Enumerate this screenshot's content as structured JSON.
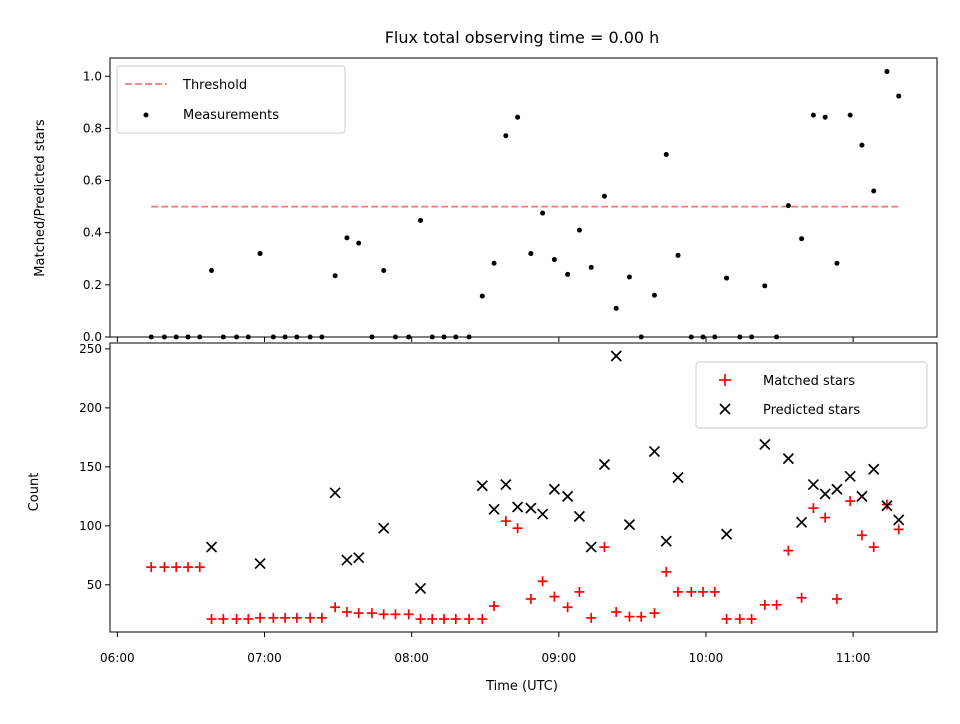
{
  "chart_data": [
    {
      "type": "scatter",
      "title": "Flux total observing time = 0.00 h",
      "ylabel": "Matched/Predicted stars",
      "xlabel": "",
      "xlim": [
        5.95,
        11.57
      ],
      "ylim": [
        0,
        1.07
      ],
      "yticks": [
        "0.0",
        "0.2",
        "0.4",
        "0.6",
        "0.8",
        "1.0"
      ],
      "grid": false,
      "legend_position": "top-left",
      "threshold": {
        "name": "Threshold",
        "value": 0.5,
        "x_range": [
          6.23,
          11.32
        ],
        "color": "#f07878",
        "style": "dashed"
      },
      "series": [
        {
          "name": "Measurements",
          "color": "#000000",
          "points": [
            [
              6.23,
              0
            ],
            [
              6.32,
              0
            ],
            [
              6.4,
              0
            ],
            [
              6.48,
              0
            ],
            [
              6.56,
              0
            ],
            [
              6.64,
              0.255
            ],
            [
              6.72,
              0
            ],
            [
              6.81,
              0
            ],
            [
              6.89,
              0
            ],
            [
              6.97,
              0.32
            ],
            [
              7.06,
              0
            ],
            [
              7.14,
              0
            ],
            [
              7.22,
              0
            ],
            [
              7.31,
              0
            ],
            [
              7.39,
              0
            ],
            [
              7.48,
              0.235
            ],
            [
              7.56,
              0.38
            ],
            [
              7.64,
              0.36
            ],
            [
              7.73,
              0
            ],
            [
              7.81,
              0.255
            ],
            [
              7.89,
              0
            ],
            [
              7.98,
              0
            ],
            [
              8.06,
              0.447
            ],
            [
              8.14,
              0
            ],
            [
              8.22,
              0
            ],
            [
              8.3,
              0
            ],
            [
              8.39,
              0
            ],
            [
              8.48,
              0.157
            ],
            [
              8.56,
              0.283
            ],
            [
              8.64,
              0.772
            ],
            [
              8.72,
              0.843
            ],
            [
              8.81,
              0.32
            ],
            [
              8.89,
              0.475
            ],
            [
              8.97,
              0.297
            ],
            [
              9.06,
              0.24
            ],
            [
              9.14,
              0.41
            ],
            [
              9.22,
              0.267
            ],
            [
              9.31,
              0.54
            ],
            [
              9.39,
              0.11
            ],
            [
              9.48,
              0.23
            ],
            [
              9.56,
              0
            ],
            [
              9.65,
              0.16
            ],
            [
              9.73,
              0.7
            ],
            [
              9.81,
              0.313
            ],
            [
              9.9,
              0
            ],
            [
              9.98,
              0
            ],
            [
              10.06,
              0
            ],
            [
              10.14,
              0.226
            ],
            [
              10.23,
              0
            ],
            [
              10.31,
              0
            ],
            [
              10.4,
              0.196
            ],
            [
              10.48,
              0
            ],
            [
              10.56,
              0.504
            ],
            [
              10.65,
              0.377
            ],
            [
              10.73,
              0.851
            ],
            [
              10.81,
              0.843
            ],
            [
              10.89,
              0.283
            ],
            [
              10.98,
              0.851
            ],
            [
              11.06,
              0.736
            ],
            [
              11.14,
              0.56
            ],
            [
              11.23,
              1.018
            ],
            [
              11.31,
              0.924
            ]
          ]
        }
      ]
    },
    {
      "type": "scatter",
      "title": "",
      "xlabel": "Time (UTC)",
      "ylabel": "Count",
      "xlim": [
        5.95,
        11.57
      ],
      "ylim": [
        10,
        255
      ],
      "xticks": [
        "06:00",
        "07:00",
        "08:00",
        "09:00",
        "10:00",
        "11:00"
      ],
      "yticks": [
        "50",
        "100",
        "150",
        "200",
        "250"
      ],
      "grid": false,
      "legend_position": "top-right",
      "series": [
        {
          "name": "Matched stars",
          "marker": "plus",
          "color": "#ff0000",
          "points": [
            [
              6.23,
              65
            ],
            [
              6.32,
              65
            ],
            [
              6.4,
              65
            ],
            [
              6.48,
              65
            ],
            [
              6.56,
              65
            ],
            [
              6.64,
              21
            ],
            [
              6.72,
              21
            ],
            [
              6.81,
              21
            ],
            [
              6.89,
              21
            ],
            [
              6.97,
              22
            ],
            [
              7.06,
              22
            ],
            [
              7.14,
              22
            ],
            [
              7.22,
              22
            ],
            [
              7.31,
              22
            ],
            [
              7.39,
              22
            ],
            [
              7.48,
              31
            ],
            [
              7.56,
              27
            ],
            [
              7.64,
              26
            ],
            [
              7.73,
              26
            ],
            [
              7.81,
              25
            ],
            [
              7.89,
              25
            ],
            [
              7.98,
              25
            ],
            [
              8.06,
              21
            ],
            [
              8.14,
              21
            ],
            [
              8.22,
              21
            ],
            [
              8.3,
              21
            ],
            [
              8.39,
              21
            ],
            [
              8.48,
              21
            ],
            [
              8.56,
              32
            ],
            [
              8.64,
              104
            ],
            [
              8.72,
              98
            ],
            [
              8.81,
              38
            ],
            [
              8.89,
              53
            ],
            [
              8.97,
              40
            ],
            [
              9.06,
              31
            ],
            [
              9.14,
              44
            ],
            [
              9.22,
              22
            ],
            [
              9.31,
              82
            ],
            [
              9.39,
              27
            ],
            [
              9.48,
              23
            ],
            [
              9.56,
              23
            ],
            [
              9.65,
              26
            ],
            [
              9.73,
              61
            ],
            [
              9.81,
              44
            ],
            [
              9.9,
              44
            ],
            [
              9.98,
              44
            ],
            [
              10.06,
              44
            ],
            [
              10.14,
              21
            ],
            [
              10.23,
              21
            ],
            [
              10.31,
              21
            ],
            [
              10.4,
              33
            ],
            [
              10.48,
              33
            ],
            [
              10.56,
              79
            ],
            [
              10.65,
              39
            ],
            [
              10.73,
              115
            ],
            [
              10.81,
              107
            ],
            [
              10.89,
              38
            ],
            [
              10.98,
              121
            ],
            [
              11.06,
              92
            ],
            [
              11.14,
              82
            ],
            [
              11.23,
              118
            ],
            [
              11.31,
              97
            ]
          ]
        },
        {
          "name": "Predicted stars",
          "marker": "x",
          "color": "#000000",
          "points": [
            [
              6.64,
              82
            ],
            [
              6.97,
              68
            ],
            [
              7.48,
              128
            ],
            [
              7.56,
              71
            ],
            [
              7.64,
              73
            ],
            [
              7.81,
              98
            ],
            [
              8.06,
              47
            ],
            [
              8.48,
              134
            ],
            [
              8.56,
              114
            ],
            [
              8.64,
              135
            ],
            [
              8.72,
              116
            ],
            [
              8.81,
              115
            ],
            [
              8.89,
              110
            ],
            [
              8.97,
              131
            ],
            [
              9.06,
              125
            ],
            [
              9.14,
              108
            ],
            [
              9.22,
              82
            ],
            [
              9.31,
              152
            ],
            [
              9.39,
              244
            ],
            [
              9.48,
              101
            ],
            [
              9.65,
              163
            ],
            [
              9.73,
              87
            ],
            [
              9.81,
              141
            ],
            [
              10.14,
              93
            ],
            [
              10.4,
              169
            ],
            [
              10.56,
              157
            ],
            [
              10.65,
              103
            ],
            [
              10.73,
              135
            ],
            [
              10.81,
              127
            ],
            [
              10.89,
              131
            ],
            [
              10.98,
              142
            ],
            [
              11.06,
              125
            ],
            [
              11.14,
              148
            ],
            [
              11.23,
              117
            ],
            [
              11.31,
              105
            ]
          ]
        }
      ]
    }
  ]
}
